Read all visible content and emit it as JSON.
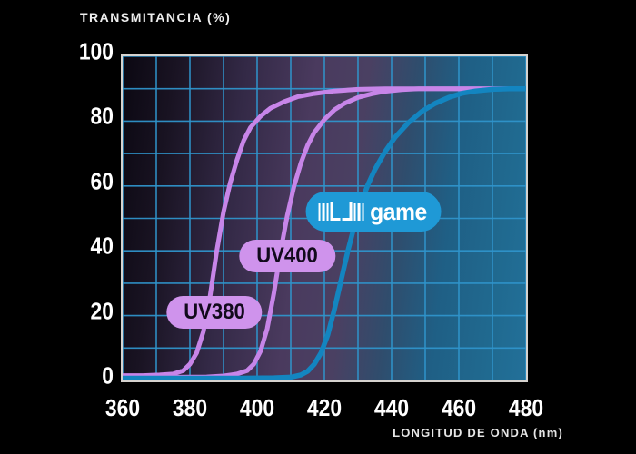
{
  "page": {
    "background": "#000000"
  },
  "chart_data": {
    "type": "line",
    "title": "TRANSMITANCIA (%)",
    "xlabel": "LONGITUD DE ONDA (nm)",
    "xlim": [
      360,
      480
    ],
    "ylim": [
      0,
      100
    ],
    "x_ticks": [
      360,
      380,
      400,
      420,
      440,
      460,
      480
    ],
    "y_ticks": [
      0,
      20,
      40,
      60,
      80,
      100
    ],
    "grid": {
      "step_x": 10,
      "step_y": 10,
      "color": "#2f94ca",
      "opacity": 0.95
    },
    "plateau_pct": 90,
    "series": [
      {
        "id": "uv380",
        "name": "UV380",
        "color": "#c785e8",
        "width": 5,
        "points": [
          [
            360,
            1.5
          ],
          [
            366,
            1.5
          ],
          [
            371,
            1.7
          ],
          [
            375,
            2
          ],
          [
            378,
            3
          ],
          [
            380,
            5
          ],
          [
            382,
            8.5
          ],
          [
            384,
            15
          ],
          [
            386,
            26
          ],
          [
            388,
            40
          ],
          [
            390,
            52
          ],
          [
            392,
            61
          ],
          [
            394,
            68
          ],
          [
            396,
            74
          ],
          [
            398,
            78
          ],
          [
            401,
            81.5
          ],
          [
            404,
            84
          ],
          [
            408,
            86
          ],
          [
            412,
            87.5
          ],
          [
            417,
            88.5
          ],
          [
            423,
            89.3
          ],
          [
            430,
            89.8
          ],
          [
            438,
            90
          ],
          [
            450,
            90
          ],
          [
            465,
            90
          ],
          [
            480,
            90
          ]
        ]
      },
      {
        "id": "uv400",
        "name": "UV400",
        "color": "#c785e8",
        "width": 5,
        "points": [
          [
            360,
            1
          ],
          [
            375,
            1
          ],
          [
            385,
            1.1
          ],
          [
            390,
            1.4
          ],
          [
            394,
            2
          ],
          [
            397,
            3
          ],
          [
            399,
            5
          ],
          [
            401,
            9
          ],
          [
            403,
            16
          ],
          [
            405,
            27
          ],
          [
            407,
            40
          ],
          [
            409,
            51
          ],
          [
            411,
            60
          ],
          [
            413,
            67
          ],
          [
            415,
            72.5
          ],
          [
            417,
            76.5
          ],
          [
            420,
            80.5
          ],
          [
            423,
            83.5
          ],
          [
            426,
            85.5
          ],
          [
            430,
            87.3
          ],
          [
            434,
            88.4
          ],
          [
            438,
            89.2
          ],
          [
            443,
            89.7
          ],
          [
            448,
            90
          ],
          [
            460,
            90
          ],
          [
            480,
            90
          ]
        ]
      },
      {
        "id": "game",
        "name": "uvgame",
        "color": "#1385c0",
        "width": 5.5,
        "points": [
          [
            360,
            0.7
          ],
          [
            395,
            0.7
          ],
          [
            405,
            0.8
          ],
          [
            410,
            1
          ],
          [
            413,
            1.7
          ],
          [
            415,
            2.8
          ],
          [
            417,
            5
          ],
          [
            419,
            8.5
          ],
          [
            421,
            14
          ],
          [
            423,
            22
          ],
          [
            425,
            31
          ],
          [
            427,
            40
          ],
          [
            429,
            48
          ],
          [
            431,
            55
          ],
          [
            433,
            60.5
          ],
          [
            435,
            65
          ],
          [
            438,
            70.5
          ],
          [
            441,
            75
          ],
          [
            445,
            79.5
          ],
          [
            449,
            83
          ],
          [
            453,
            85.5
          ],
          [
            457,
            87.3
          ],
          [
            461,
            88.6
          ],
          [
            465,
            89.3
          ],
          [
            470,
            89.8
          ],
          [
            475,
            90
          ],
          [
            480,
            90
          ]
        ]
      }
    ],
    "annotations": [
      {
        "id": "uv380",
        "label": "UV380",
        "x_nm": 387.3,
        "y_pct": 21,
        "bg": "#cf93ec",
        "text_color": "#120a1c"
      },
      {
        "id": "uv400",
        "label": "UV400",
        "x_nm": 409,
        "y_pct": 38.5,
        "bg": "#cf93ec",
        "text_color": "#120a1c"
      },
      {
        "id": "game",
        "label": "game",
        "icon": "uv-barcode-icon",
        "x_nm": 434.5,
        "y_pct": 52,
        "bg": "#1f99d6",
        "text_color": "#ffffff"
      }
    ]
  }
}
